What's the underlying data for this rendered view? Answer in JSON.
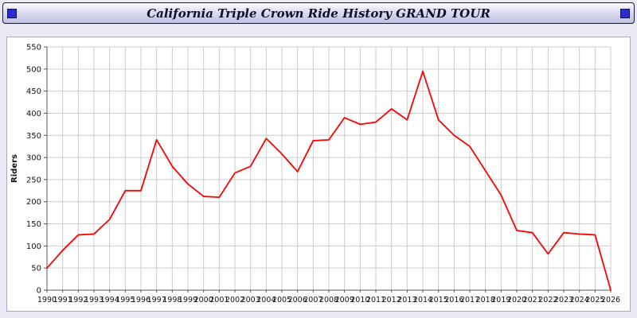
{
  "header": {
    "title": "California Triple Crown Ride History GRAND TOUR"
  },
  "chart_data": {
    "type": "line",
    "title": "California Triple Crown Ride History GRAND TOUR",
    "xlabel": "",
    "ylabel": "Riders",
    "ylim": [
      0,
      550
    ],
    "ytick_step": 50,
    "grid": true,
    "grid_color": "#cccccc",
    "axis_color": "#555566",
    "line_color": "#ff0000",
    "legend": "none",
    "x": [
      1990,
      1991,
      1992,
      1993,
      1994,
      1995,
      1996,
      1997,
      1998,
      1999,
      2000,
      2001,
      2002,
      2003,
      2004,
      2005,
      2006,
      2007,
      2008,
      2009,
      2010,
      2011,
      2012,
      2013,
      2014,
      2015,
      2016,
      2017,
      2018,
      2019,
      2020,
      2021,
      2022,
      2023,
      2024,
      2025,
      2026
    ],
    "values": [
      50,
      90,
      125,
      127,
      160,
      225,
      225,
      340,
      280,
      240,
      212,
      210,
      265,
      280,
      343,
      308,
      268,
      338,
      340,
      390,
      375,
      380,
      410,
      385,
      495,
      385,
      350,
      325,
      270,
      215,
      135,
      130,
      82,
      130,
      127,
      125,
      0
    ]
  }
}
